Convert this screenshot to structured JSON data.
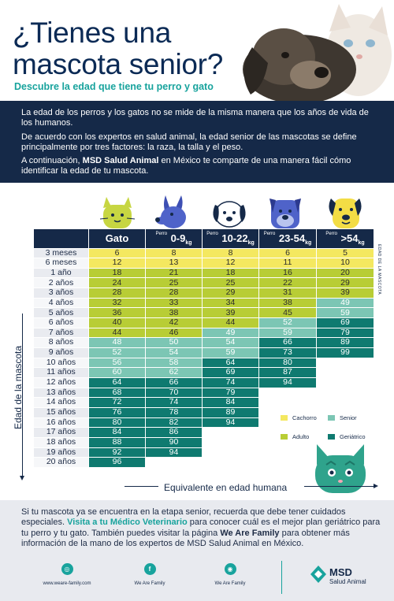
{
  "header": {
    "title_line1": "¿Tienes una",
    "title_line2": "mascota senior?",
    "subtitle": "Descubre la edad que tiene tu perro y gato"
  },
  "intro": {
    "p1": "La edad de los perros y los gatos no se mide de la misma manera que los años de vida de los humanos.",
    "p2": "De acuerdo con los expertos en salud animal, la edad senior de las mascotas se define principalmente por tres factores: la raza, la talla y el peso.",
    "p3_before": "A continuación, ",
    "p3_bold": "MSD Salud Animal",
    "p3_after": " en México te comparte de una manera fácil cómo identificar la edad de tu mascota."
  },
  "table": {
    "headers": [
      {
        "main": "Gato",
        "pre": "",
        "unit": ""
      },
      {
        "main": "0-9",
        "pre": "Perro",
        "unit": "kg"
      },
      {
        "main": "10-22",
        "pre": "Perro",
        "unit": "kg"
      },
      {
        "main": "23-54",
        "pre": "Perro",
        "unit": "kg"
      },
      {
        "main": ">54",
        "pre": "Perro",
        "unit": "kg"
      }
    ],
    "rows": [
      {
        "age": "3 meses",
        "v": [
          [
            "6",
            "c"
          ],
          [
            "8",
            "c"
          ],
          [
            "8",
            "c"
          ],
          [
            "6",
            "c"
          ],
          [
            "5",
            "c"
          ]
        ]
      },
      {
        "age": "6 meses",
        "v": [
          [
            "12",
            "c"
          ],
          [
            "13",
            "c"
          ],
          [
            "12",
            "c"
          ],
          [
            "11",
            "c"
          ],
          [
            "10",
            "c"
          ]
        ]
      },
      {
        "age": "1 año",
        "v": [
          [
            "18",
            "a"
          ],
          [
            "21",
            "a"
          ],
          [
            "18",
            "a"
          ],
          [
            "16",
            "a"
          ],
          [
            "20",
            "a"
          ]
        ]
      },
      {
        "age": "2 años",
        "v": [
          [
            "24",
            "a"
          ],
          [
            "25",
            "a"
          ],
          [
            "25",
            "a"
          ],
          [
            "22",
            "a"
          ],
          [
            "29",
            "a"
          ]
        ]
      },
      {
        "age": "3 años",
        "v": [
          [
            "28",
            "a"
          ],
          [
            "28",
            "a"
          ],
          [
            "29",
            "a"
          ],
          [
            "31",
            "a"
          ],
          [
            "39",
            "a"
          ]
        ]
      },
      {
        "age": "4 años",
        "v": [
          [
            "32",
            "a"
          ],
          [
            "33",
            "a"
          ],
          [
            "34",
            "a"
          ],
          [
            "38",
            "a"
          ],
          [
            "49",
            "s"
          ]
        ]
      },
      {
        "age": "5 años",
        "v": [
          [
            "36",
            "a"
          ],
          [
            "38",
            "a"
          ],
          [
            "39",
            "a"
          ],
          [
            "45",
            "a"
          ],
          [
            "59",
            "s"
          ]
        ]
      },
      {
        "age": "6 años",
        "v": [
          [
            "40",
            "a"
          ],
          [
            "42",
            "a"
          ],
          [
            "44",
            "a"
          ],
          [
            "52",
            "s"
          ],
          [
            "69",
            "g"
          ]
        ]
      },
      {
        "age": "7 años",
        "v": [
          [
            "44",
            "a"
          ],
          [
            "46",
            "a"
          ],
          [
            "49",
            "s"
          ],
          [
            "59",
            "s"
          ],
          [
            "79",
            "g"
          ]
        ]
      },
      {
        "age": "8 años",
        "v": [
          [
            "48",
            "s"
          ],
          [
            "50",
            "s"
          ],
          [
            "54",
            "s"
          ],
          [
            "66",
            "g"
          ],
          [
            "89",
            "g"
          ]
        ]
      },
      {
        "age": "9 años",
        "v": [
          [
            "52",
            "s"
          ],
          [
            "54",
            "s"
          ],
          [
            "59",
            "s"
          ],
          [
            "73",
            "g"
          ],
          [
            "99",
            "g"
          ]
        ]
      },
      {
        "age": "10 años",
        "v": [
          [
            "56",
            "s"
          ],
          [
            "58",
            "s"
          ],
          [
            "64",
            "g"
          ],
          [
            "80",
            "g"
          ],
          [
            "",
            "n"
          ]
        ]
      },
      {
        "age": "11 años",
        "v": [
          [
            "60",
            "s"
          ],
          [
            "62",
            "s"
          ],
          [
            "69",
            "g"
          ],
          [
            "87",
            "g"
          ],
          [
            "",
            "n"
          ]
        ]
      },
      {
        "age": "12 años",
        "v": [
          [
            "64",
            "g"
          ],
          [
            "66",
            "g"
          ],
          [
            "74",
            "g"
          ],
          [
            "94",
            "g"
          ],
          [
            "",
            "n"
          ]
        ]
      },
      {
        "age": "13 años",
        "v": [
          [
            "68",
            "g"
          ],
          [
            "70",
            "g"
          ],
          [
            "79",
            "g"
          ],
          [
            "",
            "n"
          ],
          [
            "",
            "n"
          ]
        ]
      },
      {
        "age": "14 años",
        "v": [
          [
            "72",
            "g"
          ],
          [
            "74",
            "g"
          ],
          [
            "84",
            "g"
          ],
          [
            "",
            "n"
          ],
          [
            "",
            "n"
          ]
        ]
      },
      {
        "age": "15 años",
        "v": [
          [
            "76",
            "g"
          ],
          [
            "78",
            "g"
          ],
          [
            "89",
            "g"
          ],
          [
            "",
            "n"
          ],
          [
            "",
            "n"
          ]
        ]
      },
      {
        "age": "16 años",
        "v": [
          [
            "80",
            "g"
          ],
          [
            "82",
            "g"
          ],
          [
            "94",
            "g"
          ],
          [
            "",
            "n"
          ],
          [
            "",
            "n"
          ]
        ]
      },
      {
        "age": "17 años",
        "v": [
          [
            "84",
            "g"
          ],
          [
            "86",
            "g"
          ],
          [
            "",
            "n"
          ],
          [
            "",
            "n"
          ],
          [
            "",
            "n"
          ]
        ]
      },
      {
        "age": "18 años",
        "v": [
          [
            "88",
            "g"
          ],
          [
            "90",
            "g"
          ],
          [
            "",
            "n"
          ],
          [
            "",
            "n"
          ],
          [
            "",
            "n"
          ]
        ]
      },
      {
        "age": "19 años",
        "v": [
          [
            "92",
            "g"
          ],
          [
            "94",
            "g"
          ],
          [
            "",
            "n"
          ],
          [
            "",
            "n"
          ],
          [
            "",
            "n"
          ]
        ]
      },
      {
        "age": "20 años",
        "v": [
          [
            "96",
            "g"
          ],
          [
            "",
            "n"
          ],
          [
            "",
            "n"
          ],
          [
            "",
            "n"
          ],
          [
            "",
            "n"
          ]
        ]
      }
    ]
  },
  "axes": {
    "y_label": "Edad de la mascota",
    "x_label": "Equivalente en edad humana",
    "side_label": "EDAD DE LA MASCOTA"
  },
  "legend": {
    "cachorro": "Cachorro",
    "senior": "Senior",
    "adulto": "Adulto",
    "geriatrico": "Geriátrico",
    "colors": {
      "cachorro": "#f4e860",
      "adulto": "#b8cd35",
      "senior": "#7cc6b4",
      "geriatrico": "#0f7a70"
    }
  },
  "footer": {
    "t1": "Si tu mascota ya se encuentra en la etapa senior, recuerda que debe tener cuidados especiales. ",
    "t_hl": "Visita a tu Médico Veterinario",
    "t2": " para conocer cuál es el mejor plan geriátrico para tu perro y tu gato. También puedes visitar la página ",
    "t_bold": "We Are Family",
    "t3": " para obtener más información de la mano de los expertos de MSD Salud Animal en México.",
    "link_web": "www.weare-family.com",
    "link_fb": "We Are Family",
    "link_ig": "We Are Family",
    "web_icon": "globe-icon",
    "fb_icon": "facebook-icon",
    "ig_icon": "instagram-icon",
    "brand_name": "MSD",
    "brand_sub": "Salud Animal"
  }
}
